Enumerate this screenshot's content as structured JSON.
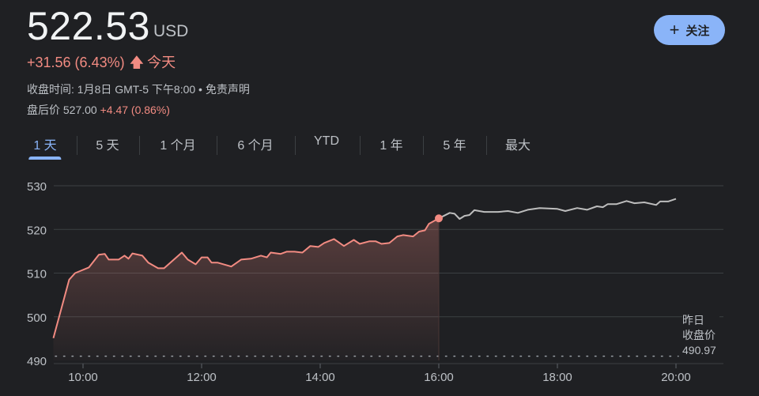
{
  "header": {
    "price": "522.53",
    "currency": "USD",
    "change": "+31.56 (6.43%)",
    "change_period": "今天",
    "close_info": "收盘时间: 1月8日 GMT-5 下午8:00 • 免责声明",
    "after_hours_label": "盘后价",
    "after_hours_price": "527.00",
    "after_hours_change": "+4.47 (0.86%)",
    "follow_label": "关注",
    "follow_icon": "plus-icon",
    "change_icon": "arrow-up-icon"
  },
  "tabs": [
    {
      "label": "1 天",
      "active": true
    },
    {
      "label": "5 天"
    },
    {
      "label": "1 个月"
    },
    {
      "label": "6 个月"
    },
    {
      "label": "YTD"
    },
    {
      "label": "1 年"
    },
    {
      "label": "5 年"
    },
    {
      "label": "最大"
    }
  ],
  "colors": {
    "up": "#f28b82",
    "after_hours": "#bdbdbd",
    "accent": "#8ab4f8",
    "background": "#1f2023"
  },
  "chart_data": {
    "type": "line",
    "xlim": [
      "09:30",
      "20:00"
    ],
    "ylim": [
      490,
      530
    ],
    "yticks": [
      "530",
      "520",
      "510",
      "500",
      "490"
    ],
    "xticks": [
      "10:00",
      "12:00",
      "14:00",
      "16:00",
      "18:00",
      "20:00"
    ],
    "grid": true,
    "previous_close": {
      "label_line1": "昨日",
      "label_line2": "收盘价",
      "value": "490.97"
    },
    "series": [
      {
        "session": "regular",
        "x": [
          "09:30",
          "09:46",
          "09:52",
          "10:06",
          "10:16",
          "10:22",
          "10:26",
          "10:36",
          "10:42",
          "10:46",
          "10:50",
          "11:00",
          "11:06",
          "11:16",
          "11:22",
          "11:40",
          "11:46",
          "11:54",
          "12:00",
          "12:06",
          "12:10",
          "12:16",
          "12:30",
          "12:40",
          "12:50",
          "13:00",
          "13:06",
          "13:10",
          "13:20",
          "13:26",
          "13:34",
          "13:42",
          "13:50",
          "13:58",
          "14:04",
          "14:14",
          "14:24",
          "14:34",
          "14:40",
          "14:50",
          "14:56",
          "15:02",
          "15:10",
          "15:18",
          "15:24",
          "15:34",
          "15:40",
          "15:46",
          "15:50",
          "16:00"
        ],
        "y": [
          495.1,
          508.5,
          510.0,
          511.3,
          514.2,
          514.4,
          513.1,
          513.1,
          514.0,
          513.3,
          514.5,
          514.0,
          512.4,
          511.1,
          511.1,
          514.7,
          513.1,
          512.0,
          513.6,
          513.6,
          512.4,
          512.4,
          511.5,
          513.1,
          513.3,
          514.0,
          513.6,
          514.7,
          514.4,
          514.9,
          514.9,
          514.7,
          516.2,
          516.0,
          516.9,
          517.8,
          516.2,
          517.6,
          516.7,
          517.3,
          517.3,
          516.7,
          516.9,
          518.4,
          518.7,
          518.4,
          519.5,
          519.8,
          521.3,
          522.53
        ]
      },
      {
        "session": "after-hours",
        "x": [
          "16:00",
          "16:11",
          "16:16",
          "16:21",
          "16:26",
          "16:31",
          "16:36",
          "16:46",
          "17:00",
          "17:10",
          "17:20",
          "17:30",
          "17:42",
          "18:00",
          "18:08",
          "18:20",
          "18:30",
          "18:40",
          "18:46",
          "18:51",
          "19:00",
          "19:10",
          "19:18",
          "19:28",
          "19:40",
          "19:44",
          "19:52",
          "20:00"
        ],
        "y": [
          522.53,
          523.8,
          523.6,
          522.4,
          523.1,
          523.3,
          524.4,
          524.0,
          524.0,
          524.2,
          523.8,
          524.5,
          524.9,
          524.7,
          524.2,
          524.9,
          524.5,
          525.3,
          525.1,
          525.8,
          525.8,
          526.5,
          526.0,
          526.2,
          525.6,
          526.4,
          526.4,
          527.0
        ]
      }
    ]
  }
}
